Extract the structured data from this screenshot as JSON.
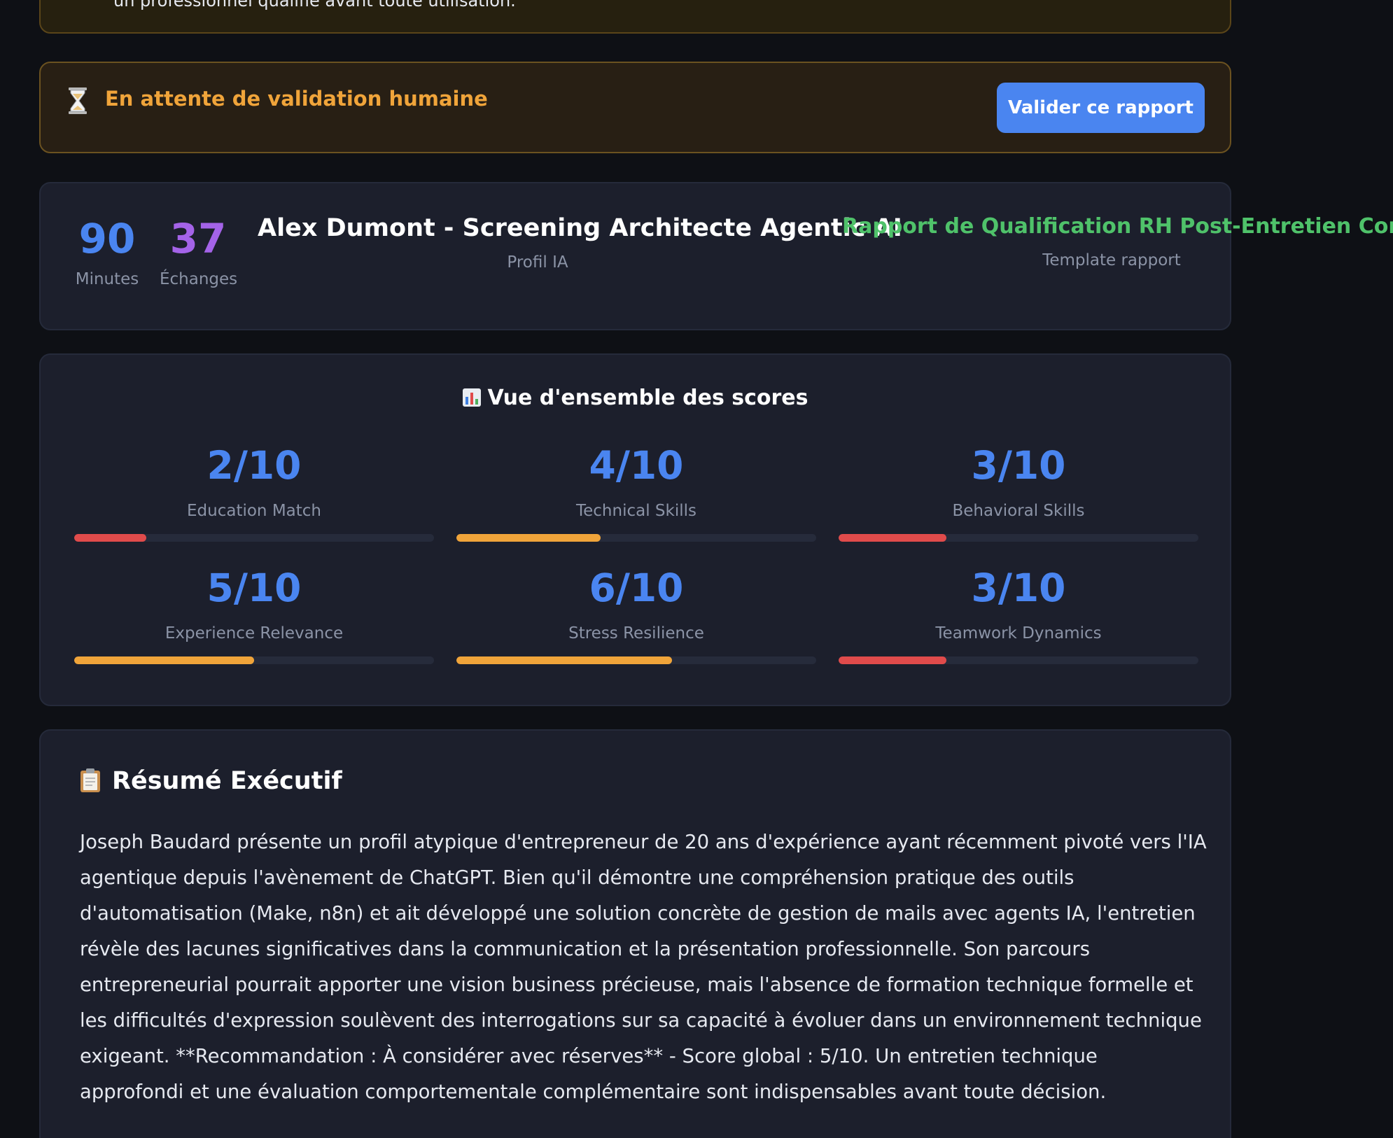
{
  "disclaimer": {
    "text": "un professionnel qualifié avant toute utilisation."
  },
  "pending": {
    "icon": "hourglass-icon",
    "title": "En attente de validation humaine",
    "button_label": "Valider ce rapport"
  },
  "stats": {
    "minutes_value": "90",
    "minutes_label": "Minutes",
    "exchanges_value": "37",
    "exchanges_label": "Échanges"
  },
  "profile": {
    "name": "Alex Dumont - Screening Architecte Agentic AI",
    "label": "Profil IA"
  },
  "template": {
    "name": "Rapport de Qualification RH Post-Entretien Complet",
    "label": "Template rapport"
  },
  "scores": {
    "title": "Vue d'ensemble des scores",
    "items": [
      {
        "value": "2/10",
        "score": 2,
        "label": "Education Match",
        "color": "#e04b4b"
      },
      {
        "value": "4/10",
        "score": 4,
        "label": "Technical Skills",
        "color": "#f0a43a"
      },
      {
        "value": "3/10",
        "score": 3,
        "label": "Behavioral Skills",
        "color": "#e04b4b"
      },
      {
        "value": "5/10",
        "score": 5,
        "label": "Experience Relevance",
        "color": "#f0a43a"
      },
      {
        "value": "6/10",
        "score": 6,
        "label": "Stress Resilience",
        "color": "#f0a43a"
      },
      {
        "value": "3/10",
        "score": 3,
        "label": "Teamwork Dynamics",
        "color": "#e04b4b"
      }
    ]
  },
  "summary": {
    "title": "Résumé Exécutif",
    "body": "Joseph Baudard présente un profil atypique d'entrepreneur de 20 ans d'expérience ayant récemment pivoté vers l'IA agentique depuis l'avènement de ChatGPT. Bien qu'il démontre une compréhension pratique des outils d'automatisation (Make, n8n) et ait développé une solution concrète de gestion de mails avec agents IA, l'entretien révèle des lacunes significatives dans la communication et la présentation professionnelle. Son parcours entrepreneurial pourrait apporter une vision business précieuse, mais l'absence de formation technique formelle et les difficultés d'expression soulèvent des interrogations sur sa capacité à évoluer dans un environnement technique exigeant. **Recommandation : À considérer avec réserves** - Score global : 5/10. Un entretien technique approfondi et une évaluation comportementale complémentaire sont indispensables avant toute décision."
  },
  "colors": {
    "accent_blue": "#4a85f0",
    "accent_purple": "#a463e8",
    "accent_green": "#4fc26a",
    "warning_orange": "#f0a43a",
    "danger_red": "#e04b4b"
  }
}
